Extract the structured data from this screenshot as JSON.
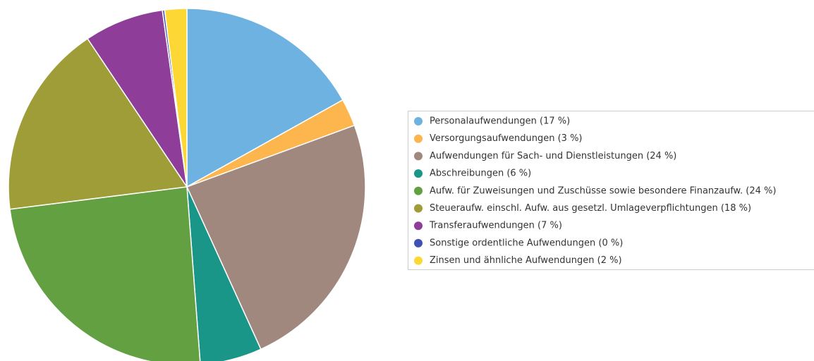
{
  "chart_data": {
    "type": "pie",
    "categories": [
      "Personalaufwendungen (17 %)",
      "Versorgungsaufwendungen (3 %)",
      "Aufwendungen für Sach- und Dienstleistungen (24 %)",
      "Abschreibungen (6 %)",
      "Aufw. für Zuweisungen und Zuschüsse sowie besondere Finanzaufw. (24 %)",
      "Steueraufw. einschl. Aufw. aus gesetzl. Umlageverpflichtungen (18 %)",
      "Transferaufwendungen (7 %)",
      "Sonstige ordentliche Aufwendungen (0 %)",
      "Zinsen und ähnliche Aufwendungen (2 %)"
    ],
    "values": [
      16.9,
      2.5,
      23.8,
      5.6,
      24.2,
      17.6,
      7.2,
      0.2,
      2.0
    ],
    "colors": [
      "#6eb2e2",
      "#fdb54d",
      "#a1887f",
      "#1a9688",
      "#63a042",
      "#9e9d37",
      "#8e3e99",
      "#3f51b5",
      "#fdd835"
    ],
    "legend": "right"
  }
}
